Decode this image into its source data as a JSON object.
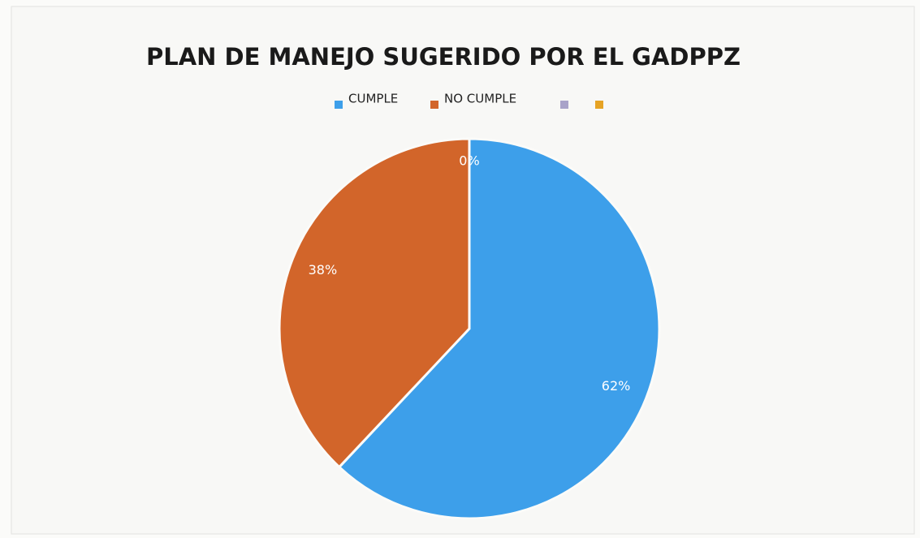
{
  "chart_data": {
    "type": "pie",
    "title": "PLAN DE MANEJO SUGERIDO POR EL GADPPZ",
    "categories": [
      "CUMPLE",
      "NO CUMPLE",
      null,
      null
    ],
    "values": [
      62,
      38,
      0,
      0
    ],
    "value_labels": [
      "62%",
      "38%",
      "0%",
      null
    ],
    "colors": [
      "#3d9fea",
      "#d2652a",
      "#a9a3c9",
      "#e6a324"
    ],
    "legend": "top"
  }
}
